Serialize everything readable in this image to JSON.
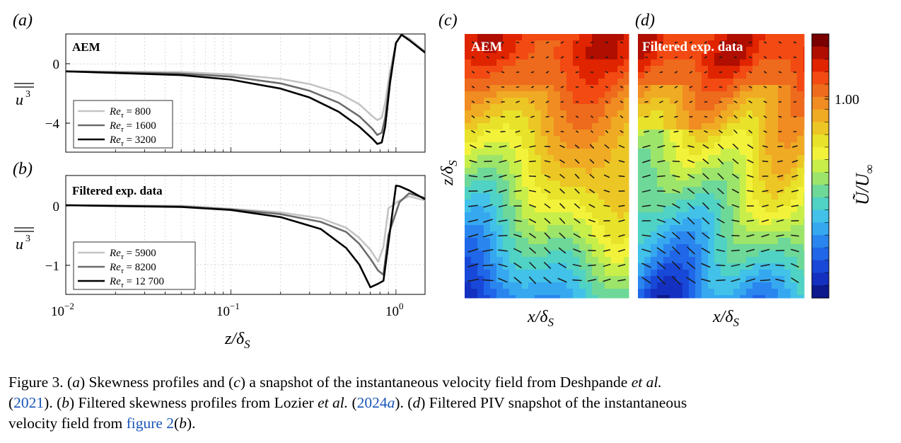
{
  "panels": {
    "a": {
      "panel_label": "(a)",
      "box_label": "AEM",
      "ylabel": "u³ (double overbar)",
      "ylabel_text": "u",
      "ylabel_exp": "3",
      "yticks": [
        "0",
        "−4"
      ],
      "legend": [
        {
          "prefix": "Re",
          "sub": "τ",
          "value": "= 800",
          "color": "#c4c4c4"
        },
        {
          "prefix": "Re",
          "sub": "τ",
          "value": "= 1600",
          "color": "#6b6b6b"
        },
        {
          "prefix": "Re",
          "sub": "τ",
          "value": "= 3200",
          "color": "#000000"
        }
      ]
    },
    "b": {
      "panel_label": "(b)",
      "box_label": "Filtered exp. data",
      "ylabel_text": "u",
      "ylabel_exp": "3",
      "yticks": [
        "0",
        "−1"
      ],
      "xticks": [
        {
          "base": "10",
          "exp": "−2"
        },
        {
          "base": "10",
          "exp": "−1"
        },
        {
          "base": "10",
          "exp": "0"
        }
      ],
      "xlabel_main": "z/δ",
      "xlabel_sub": "S",
      "legend": [
        {
          "prefix": "Re",
          "sub": "τ",
          "value": "= 5900",
          "color": "#c4c4c4"
        },
        {
          "prefix": "Re",
          "sub": "τ",
          "value": "= 8200",
          "color": "#6b6b6b"
        },
        {
          "prefix": "Re",
          "sub": "τ",
          "value": "= 12 700",
          "color": "#000000"
        }
      ]
    },
    "c": {
      "panel_label": "(c)",
      "box_label": "AEM",
      "xlabel_main": "x/δ",
      "xlabel_sub": "S",
      "ylabel_main": "z/δ",
      "ylabel_sub": "S"
    },
    "d": {
      "panel_label": "(d)",
      "box_label": "Filtered exp. data",
      "xlabel_main": "x/δ",
      "xlabel_sub": "S"
    },
    "colorbar": {
      "tick_label": "1.00",
      "label_main": "Ũ/U",
      "label_sub": "∞",
      "colors": [
        "#7a0000",
        "#b00e00",
        "#e02400",
        "#f24a12",
        "#ee6a1c",
        "#f08c22",
        "#f0ab24",
        "#ecc624",
        "#e8e22a",
        "#f2f23a",
        "#c8ee4a",
        "#9ce46a",
        "#6ed898",
        "#50d2c4",
        "#42c2e8",
        "#36a8f0",
        "#2a86ee",
        "#2066e8",
        "#1848d8",
        "#1430c0",
        "#0c1a8e"
      ]
    }
  },
  "chart_data": [
    {
      "type": "line",
      "panel": "a",
      "box_label": "AEM",
      "xscale": "log",
      "xlim": [
        0.01,
        1.5
      ],
      "ylim": [
        -5.9,
        2.0
      ],
      "yticks": [
        0,
        -4
      ],
      "series": [
        {
          "name": "Re_τ = 800",
          "x": [
            0.01,
            0.05,
            0.1,
            0.2,
            0.3,
            0.45,
            0.6,
            0.72,
            0.77,
            0.82,
            0.86,
            0.92,
            1.0,
            1.08,
            1.2,
            1.5
          ],
          "y": [
            -0.5,
            -0.55,
            -0.7,
            -1.0,
            -1.35,
            -1.95,
            -2.7,
            -3.5,
            -3.75,
            -3.6,
            -2.6,
            -0.5,
            1.4,
            1.95,
            1.7,
            0.8
          ]
        },
        {
          "name": "Re_τ = 1600",
          "x": [
            0.01,
            0.05,
            0.1,
            0.2,
            0.3,
            0.45,
            0.6,
            0.72,
            0.77,
            0.82,
            0.86,
            0.92,
            1.0,
            1.08,
            1.2,
            1.5
          ],
          "y": [
            -0.5,
            -0.65,
            -0.85,
            -1.3,
            -1.8,
            -2.6,
            -3.5,
            -4.35,
            -4.75,
            -4.6,
            -3.6,
            -1.0,
            1.4,
            1.95,
            1.6,
            0.8
          ]
        },
        {
          "name": "Re_τ = 3200",
          "x": [
            0.01,
            0.05,
            0.1,
            0.2,
            0.3,
            0.45,
            0.6,
            0.72,
            0.77,
            0.82,
            0.86,
            0.92,
            1.0,
            1.08,
            1.2,
            1.5
          ],
          "y": [
            -0.5,
            -0.75,
            -1.05,
            -1.65,
            -2.25,
            -3.2,
            -4.2,
            -5.0,
            -5.35,
            -5.25,
            -4.2,
            -1.3,
            1.4,
            1.95,
            1.6,
            0.75
          ]
        }
      ]
    },
    {
      "type": "line",
      "panel": "b",
      "box_label": "Filtered exp. data",
      "xscale": "log",
      "xlim": [
        0.01,
        1.5
      ],
      "ylim": [
        -1.5,
        0.5
      ],
      "yticks": [
        0,
        -1
      ],
      "xlabel": "z/δ_S",
      "series": [
        {
          "name": "Re_τ = 5900",
          "x": [
            0.01,
            0.05,
            0.1,
            0.2,
            0.35,
            0.5,
            0.6,
            0.7,
            0.78,
            0.84,
            0.9,
            1.05,
            1.2,
            1.5
          ],
          "y": [
            0.0,
            -0.01,
            -0.06,
            -0.12,
            -0.22,
            -0.38,
            -0.55,
            -0.75,
            -0.95,
            -0.7,
            -0.05,
            0.08,
            0.15,
            0.08
          ]
        },
        {
          "name": "Re_τ = 8200",
          "x": [
            0.01,
            0.05,
            0.1,
            0.2,
            0.35,
            0.5,
            0.6,
            0.7,
            0.78,
            0.84,
            0.9,
            1.05,
            1.2,
            1.5
          ],
          "y": [
            0.0,
            -0.02,
            -0.07,
            -0.15,
            -0.28,
            -0.45,
            -0.65,
            -0.9,
            -1.1,
            -1.17,
            -0.5,
            0.05,
            0.2,
            0.12
          ]
        },
        {
          "name": "Re_τ = 12 700",
          "x": [
            0.01,
            0.05,
            0.1,
            0.2,
            0.35,
            0.5,
            0.6,
            0.7,
            0.78,
            0.84,
            1.0,
            1.05,
            1.2,
            1.5
          ],
          "y": [
            0.0,
            -0.03,
            -0.08,
            -0.2,
            -0.4,
            -0.72,
            -1.0,
            -1.38,
            -1.32,
            -1.27,
            0.33,
            0.32,
            0.25,
            0.1
          ]
        }
      ]
    },
    {
      "type": "heatmap",
      "panel": "c",
      "box_label": "AEM",
      "xlabel": "x/δ_S",
      "ylabel": "z/δ_S",
      "colorbar_tick": "1.00",
      "colorbar_label": "Ũ/U_∞"
    },
    {
      "type": "heatmap",
      "panel": "d",
      "box_label": "Filtered exp. data",
      "xlabel": "x/δ_S"
    }
  ],
  "caption": {
    "fig": "Figure 3.",
    "p1": " (",
    "a": "a",
    "p2": ") Skewness profiles and (",
    "c": "c",
    "p3": ") a snapshot of the instantaneous velocity field from Deshpande ",
    "etal1": "et al.",
    "p4": "(",
    "year1": "2021",
    "p5": "). (",
    "b": "b",
    "p6": ") Filtered skewness profiles from Lozier ",
    "etal2": "et al.",
    "p7": " (",
    "year2": "2024",
    "year2_suffix": "a",
    "p8": "). (",
    "d": "d",
    "p9": ") Filtered PIV snapshot of the instantaneous",
    "p10": "velocity field from ",
    "fig_ref": "figure 2",
    "p11": "(",
    "b2": "b",
    "p12": ")."
  }
}
